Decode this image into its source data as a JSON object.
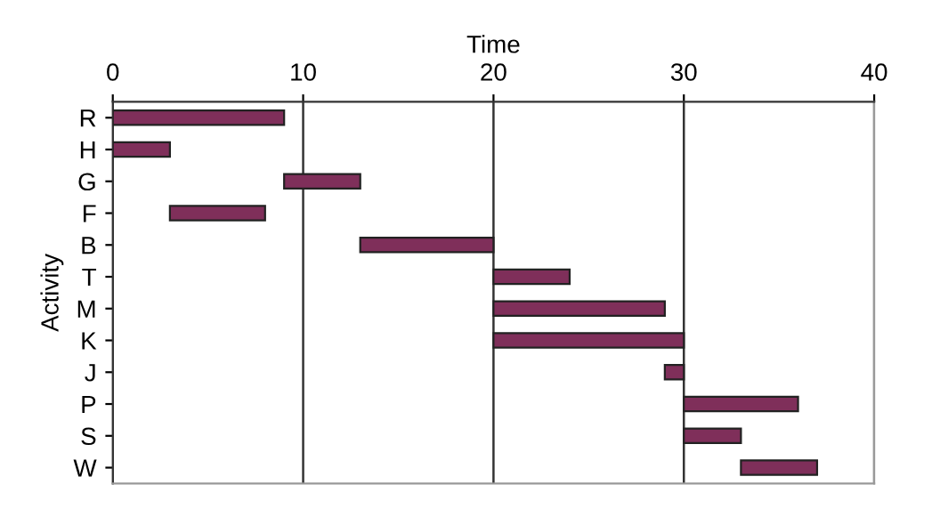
{
  "chart_data": {
    "type": "bar",
    "orientation": "horizontal",
    "xlabel": "Time",
    "ylabel": "Activity",
    "categories": [
      "R",
      "H",
      "G",
      "F",
      "B",
      "T",
      "M",
      "K",
      "J",
      "P",
      "S",
      "W"
    ],
    "base": [
      0,
      0,
      9,
      3,
      13,
      20,
      20,
      20,
      29,
      30,
      30,
      33
    ],
    "values": [
      9,
      3,
      4,
      5,
      7,
      4,
      9,
      10,
      1,
      6,
      3,
      4
    ],
    "color": "#7f2f5a",
    "xlim": [
      0,
      40
    ],
    "xticks": [
      0,
      10,
      20,
      30,
      40
    ],
    "grid": "x",
    "legend": false
  }
}
